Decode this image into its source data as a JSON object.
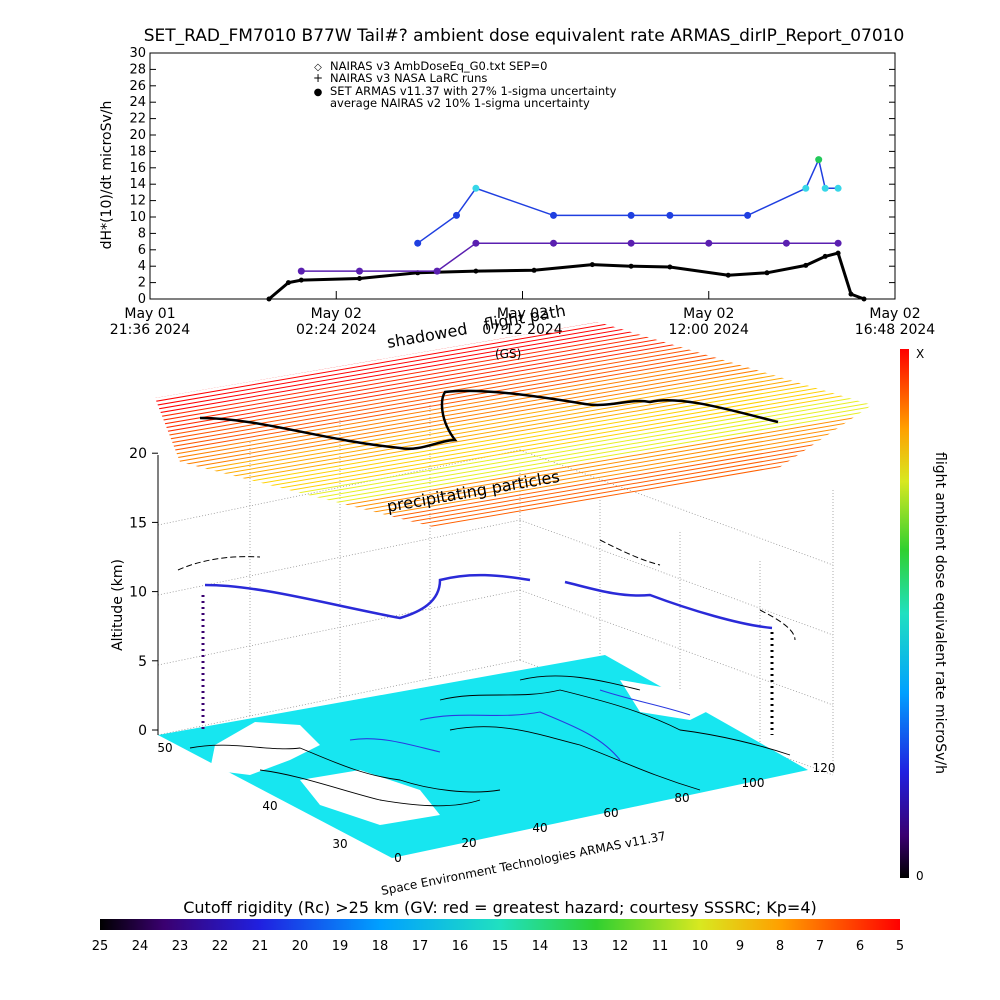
{
  "title": "SET_RAD_FM7010  B77W Tail#? ambient dose equivalent rate ARMAS_dirIP_Report_07010",
  "colors": {
    "armas": "#1f3fe0",
    "nairas_v2": "#5a1fb0",
    "nairas_v3": "#000000",
    "highlight": "#37d6e8",
    "peak": "#22c95a",
    "ocean": "#17e6f0",
    "land": "#ffffff"
  },
  "top_chart": {
    "ylabel": "dH*(10)/dt microSv/h",
    "yticks": [
      "0",
      "2",
      "4",
      "6",
      "8",
      "10",
      "12",
      "14",
      "16",
      "18",
      "20",
      "22",
      "24",
      "26",
      "28",
      "30"
    ],
    "ylim": [
      0,
      30
    ],
    "xticks": [
      {
        "date": "May 01",
        "time": "21:36 2024"
      },
      {
        "date": "May 02",
        "time": "02:24 2024"
      },
      {
        "date": "May 02",
        "time": "07:12 2024"
      },
      {
        "date": "May 02",
        "time": "12:00 2024"
      },
      {
        "date": "May 02",
        "time": "16:48 2024"
      }
    ],
    "legend": [
      {
        "symbol": "◇",
        "text": "NAIRAS v3 AmbDoseEq_G0.txt SEP=0"
      },
      {
        "symbol": "+",
        "text": "NAIRAS v3 NASA LaRC runs"
      },
      {
        "symbol": "●",
        "text": "SET ARMAS v11.37 with 27% 1-sigma uncertainty"
      },
      {
        "symbol": "",
        "text": "average NAIRAS v2 10% 1-sigma uncertainty"
      }
    ]
  },
  "chart_data": [
    {
      "type": "line",
      "title": "SET_RAD_FM7010  B77W Tail#? ambient dose equivalent rate ARMAS_dirIP_Report_07010",
      "xlabel": "",
      "ylabel": "dH*(10)/dt microSv/h",
      "xlim": [
        "2024-05-01T21:36",
        "2024-05-02T16:48"
      ],
      "ylim": [
        0,
        30
      ],
      "series": [
        {
          "name": "NAIRAS v3 AmbDoseEq_G0.txt SEP=0",
          "x": [
            "2024-05-02T00:40",
            "2024-05-02T01:10",
            "2024-05-02T01:30",
            "2024-05-02T03:00",
            "2024-05-02T04:30",
            "2024-05-02T06:00",
            "2024-05-02T07:30",
            "2024-05-02T09:00",
            "2024-05-02T10:00",
            "2024-05-02T11:00",
            "2024-05-02T12:30",
            "2024-05-02T13:30",
            "2024-05-02T14:30",
            "2024-05-02T15:00",
            "2024-05-02T15:20",
            "2024-05-02T15:40",
            "2024-05-02T16:00"
          ],
          "y": [
            0,
            2.0,
            2.3,
            2.5,
            3.2,
            3.4,
            3.5,
            4.2,
            4.0,
            3.9,
            2.9,
            3.2,
            4.1,
            5.2,
            5.6,
            0.6,
            0
          ]
        },
        {
          "name": "SET ARMAS v11.37 with 27% 1-sigma uncertainty",
          "x": [
            "2024-05-02T04:30",
            "2024-05-02T05:30",
            "2024-05-02T06:00",
            "2024-05-02T08:00",
            "2024-05-02T10:00",
            "2024-05-02T11:00",
            "2024-05-02T13:00",
            "2024-05-02T14:30",
            "2024-05-02T14:50",
            "2024-05-02T15:00",
            "2024-05-02T15:20"
          ],
          "y": [
            6.8,
            10.2,
            13.5,
            10.2,
            10.2,
            10.2,
            10.2,
            13.5,
            17.0,
            13.5,
            13.5
          ]
        },
        {
          "name": "average NAIRAS v2 10% 1-sigma uncertainty",
          "x": [
            "2024-05-02T01:30",
            "2024-05-02T03:00",
            "2024-05-02T05:00",
            "2024-05-02T06:00",
            "2024-05-02T08:00",
            "2024-05-02T10:00",
            "2024-05-02T12:00",
            "2024-05-02T14:00",
            "2024-05-02T15:20"
          ],
          "y": [
            3.4,
            3.4,
            3.4,
            6.8,
            6.8,
            6.8,
            6.8,
            6.8,
            6.8
          ]
        }
      ]
    }
  ],
  "scene": {
    "altitude_label": "Altitude (km)",
    "altitude_ticks": [
      "0",
      "5",
      "10",
      "15",
      "20"
    ],
    "lat_ticks": [
      "30",
      "40",
      "50"
    ],
    "lon_ticks": [
      "0",
      "20",
      "40",
      "60",
      "80",
      "100",
      "120"
    ],
    "label_shadowed": "shadowed",
    "label_flight_path": "flight path",
    "label_shadow_path": "(GS)",
    "label_precip": "precipitating particles",
    "credit": "Space Environment Technologies ARMAS v11.37"
  },
  "right_colorbar": {
    "label": "flight ambient dose equivalent rate microSv/h",
    "top_label": "X",
    "bottom_label": "0"
  },
  "bottom_colorbar": {
    "label": "Cutoff rigidity (Rc) >25 km (GV: red = greatest hazard; courtesy SSSRC; Kp=4)",
    "ticks": [
      "25",
      "24",
      "23",
      "22",
      "21",
      "20",
      "19",
      "18",
      "17",
      "16",
      "15",
      "14",
      "13",
      "12",
      "11",
      "10",
      "9",
      "8",
      "7",
      "6",
      "5"
    ]
  }
}
